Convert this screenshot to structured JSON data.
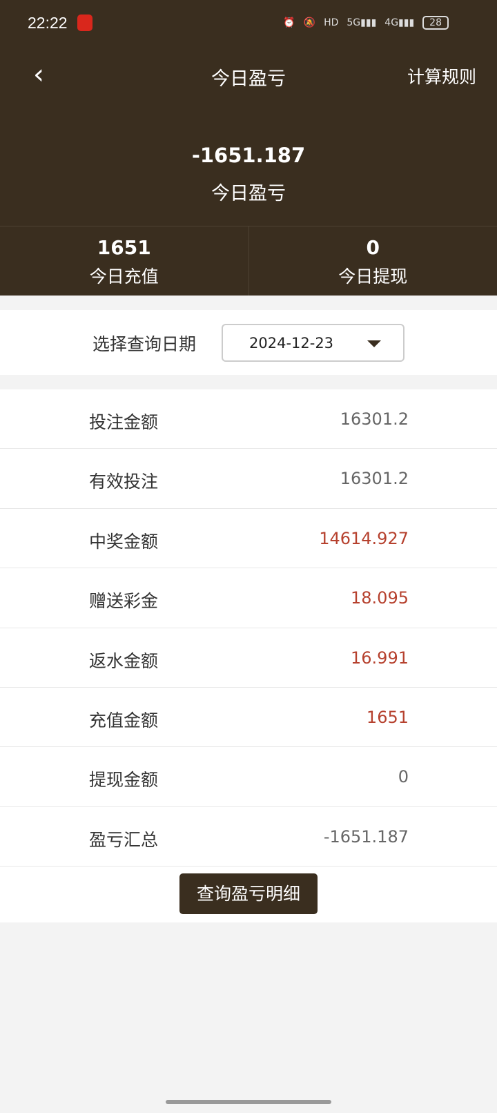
{
  "status_bar": {
    "time": "22:22",
    "network": "5G",
    "network2": "4G",
    "hd": "HD",
    "battery": "28"
  },
  "header": {
    "title": "今日盈亏",
    "rules_label": "计算规则"
  },
  "summary": {
    "amount": "-1651.187",
    "label": "今日盈亏"
  },
  "stats": [
    {
      "value": "1651",
      "label": "今日充值"
    },
    {
      "value": "0",
      "label": "今日提现"
    }
  ],
  "date_filter": {
    "label": "选择查询日期",
    "value": "2024-12-23"
  },
  "rows": [
    {
      "label": "投注金额",
      "value": "16301.2",
      "highlight": false
    },
    {
      "label": "有效投注",
      "value": "16301.2",
      "highlight": false
    },
    {
      "label": "中奖金额",
      "value": "14614.927",
      "highlight": true
    },
    {
      "label": "赠送彩金",
      "value": "18.095",
      "highlight": true
    },
    {
      "label": "返水金额",
      "value": "16.991",
      "highlight": true
    },
    {
      "label": "充值金额",
      "value": "1651",
      "highlight": true
    },
    {
      "label": "提现金额",
      "value": "0",
      "highlight": false
    },
    {
      "label": "盈亏汇总",
      "value": "-1651.187",
      "highlight": false
    }
  ],
  "detail_button": "查询盈亏明细",
  "colors": {
    "brand": "#3a2e1f",
    "highlight": "#b6412e"
  }
}
